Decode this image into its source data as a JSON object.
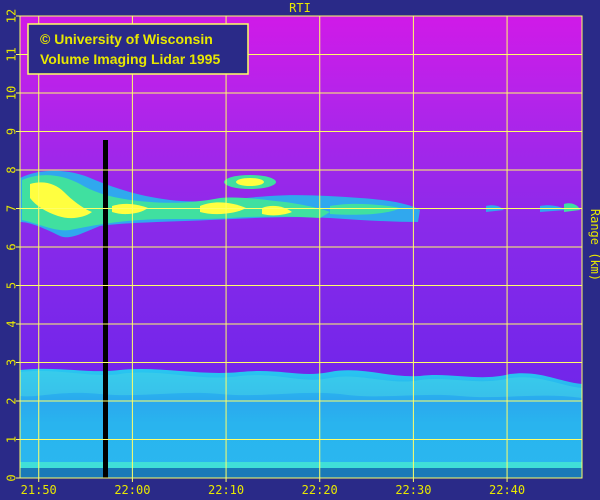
{
  "chart_data": {
    "type": "heatmap",
    "title": "RTI",
    "ylabel": "Range (km)",
    "xlabel": "",
    "xlim": [
      "21:48",
      "22:48"
    ],
    "ylim": [
      0,
      12
    ],
    "x_ticks": [
      "21:50",
      "22:00",
      "22:10",
      "22:20",
      "22:30",
      "22:40"
    ],
    "y_ticks": [
      0,
      1,
      2,
      3,
      4,
      5,
      6,
      7,
      8,
      9,
      10,
      11,
      12
    ],
    "grid": true,
    "annotation": {
      "line1": "© University of Wisconsin",
      "line2": "Volume Imaging Lidar  1995"
    },
    "features": {
      "boundary_layer_top_km": 2.75,
      "cirrus_base_km": 6.8,
      "cirrus_top_km": 7.9,
      "data_gap_time": "21:57"
    },
    "colors": {
      "background": "#2a2a88",
      "axis_text": "#e8e800",
      "grid": "#ffff66",
      "low_signal": "#7020e0",
      "high_altitude": "#c020e8",
      "boundary_layer": "#29b8ee",
      "cloud_core": "#ffff40"
    }
  }
}
